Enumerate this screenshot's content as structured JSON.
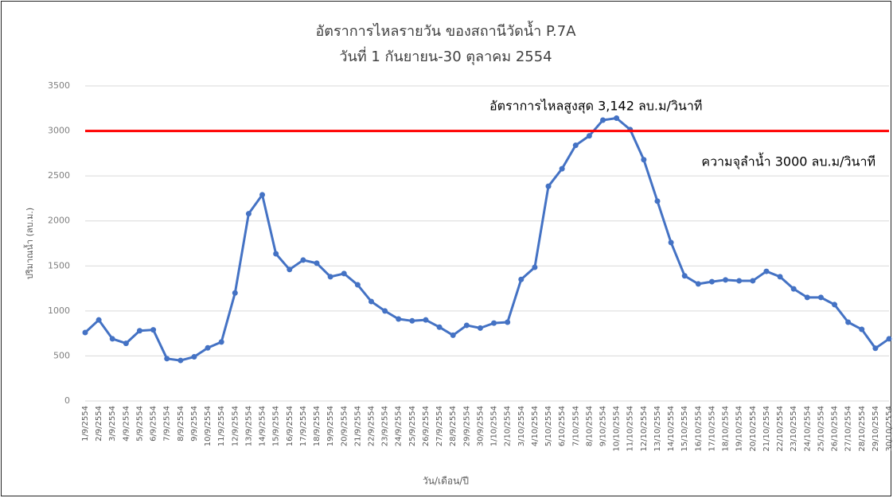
{
  "chart_data": {
    "type": "line",
    "title": "อัตราการไหลรายวัน ของสถานีวัดน้ำ P.7A",
    "subtitle": "วันที่ 1 กันยายน-30 ตุลาคม 2554",
    "y_label": "ปริมาณน้ำ (ลบ.ม.)",
    "x_label": "วัน/เดือน/ปี",
    "categories": [
      "1/9/2554",
      "2/9/2554",
      "3/9/2554",
      "4/9/2554",
      "5/9/2554",
      "6/9/2554",
      "7/9/2554",
      "8/9/2554",
      "9/9/2554",
      "10/9/2554",
      "11/9/2554",
      "12/9/2554",
      "13/9/2554",
      "14/9/2554",
      "15/9/2554",
      "16/9/2554",
      "17/9/2554",
      "18/9/2554",
      "19/9/2554",
      "20/9/2554",
      "21/9/2554",
      "22/9/2554",
      "23/9/2554",
      "24/9/2554",
      "25/9/2554",
      "26/9/2554",
      "27/9/2554",
      "28/9/2554",
      "29/9/2554",
      "30/9/2554",
      "1/10/2554",
      "2/10/2554",
      "3/10/2554",
      "4/10/2554",
      "5/10/2554",
      "6/10/2554",
      "7/10/2554",
      "8/10/2554",
      "9/10/2554",
      "10/10/2554",
      "11/10/2554",
      "12/10/2554",
      "13/10/2554",
      "14/10/2554",
      "15/10/2554",
      "16/10/2554",
      "17/10/2554",
      "18/10/2554",
      "19/10/2554",
      "20/10/2554",
      "21/10/2554",
      "22/10/2554",
      "23/10/2554",
      "24/10/2554",
      "25/10/2554",
      "26/10/2554",
      "27/10/2554",
      "28/10/2554",
      "29/10/2554",
      "30/10/2554"
    ],
    "series": [
      {
        "color": "#4472c4",
        "values": [
          760,
          900,
          690,
          640,
          780,
          790,
          470,
          450,
          490,
          590,
          655,
          1200,
          2080,
          2290,
          1635,
          1460,
          1565,
          1530,
          1380,
          1415,
          1290,
          1105,
          1000,
          910,
          890,
          900,
          820,
          730,
          840,
          810,
          865,
          875,
          1350,
          1485,
          2385,
          2580,
          2840,
          2945,
          3120,
          3142,
          3015,
          2680,
          2220,
          1760,
          1390,
          1300,
          1325,
          1345,
          1335,
          1335,
          1440,
          1380,
          1245,
          1150,
          1150,
          1070,
          875,
          795,
          585,
          690
        ]
      }
    ],
    "reference_line": {
      "value": 3000,
      "label": "ความจุลำน้ำ 3000 ลบ.ม/วินาที",
      "color": "#ff0000"
    },
    "annotation": "อัตราการไหลสูงสุด 3,142 ลบ.ม/วินาที",
    "ylim": [
      0,
      3500
    ],
    "yticks": [
      0,
      500,
      1000,
      1500,
      2000,
      2500,
      3000,
      3500
    ],
    "grid": true
  }
}
